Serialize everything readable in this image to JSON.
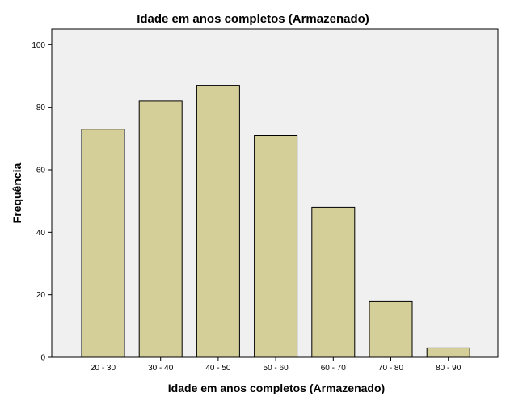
{
  "chart_data": {
    "type": "bar",
    "title": "Idade em anos completos (Armazenado)",
    "xlabel": "Idade em anos completos (Armazenado)",
    "ylabel": "Frequência",
    "categories": [
      "20 - 30",
      "30 - 40",
      "40 - 50",
      "50 - 60",
      "60 - 70",
      "70 - 80",
      "80 - 90"
    ],
    "values": [
      73,
      82,
      87,
      71,
      48,
      18,
      3
    ],
    "ylim": [
      0,
      105
    ],
    "yticks": [
      0,
      20,
      40,
      60,
      80,
      100
    ],
    "grid": false,
    "colors": {
      "bar_fill": "#d4ce99",
      "plot_background": "#f0f0f0"
    }
  }
}
